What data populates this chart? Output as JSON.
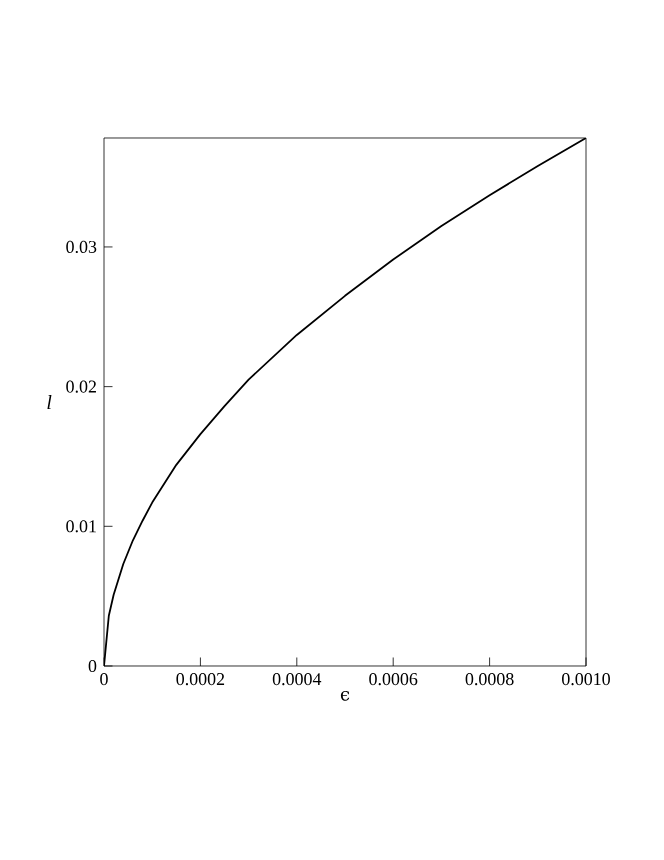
{
  "chart_data": {
    "type": "line",
    "xlabel": "ϵ",
    "ylabel": "l",
    "x": [
      0,
      1e-05,
      2e-05,
      4e-05,
      6e-05,
      8e-05,
      0.0001,
      0.00015,
      0.0002,
      0.00025,
      0.0003,
      0.0004,
      0.0005,
      0.0006,
      0.0007,
      0.0008,
      0.0009,
      0.001
    ],
    "series": [
      {
        "color": "#000000",
        "values": [
          0,
          0.0036,
          0.0051,
          0.0073,
          0.009,
          0.0104,
          0.0117,
          0.0144,
          0.0166,
          0.0186,
          0.0205,
          0.0237,
          0.0265,
          0.0291,
          0.0315,
          0.0337,
          0.0358,
          0.0378
        ]
      }
    ],
    "xlim": [
      0,
      0.001
    ],
    "ylim": [
      0,
      0.0378
    ],
    "xticks": [
      0,
      0.0002,
      0.0004,
      0.0006,
      0.0008,
      {
        "value": 0.001,
        "label": "0.0010"
      }
    ],
    "yticks": [
      0,
      0.01,
      0.02,
      0.03
    ],
    "grid": false,
    "marker": "none",
    "line_style": "solid"
  }
}
